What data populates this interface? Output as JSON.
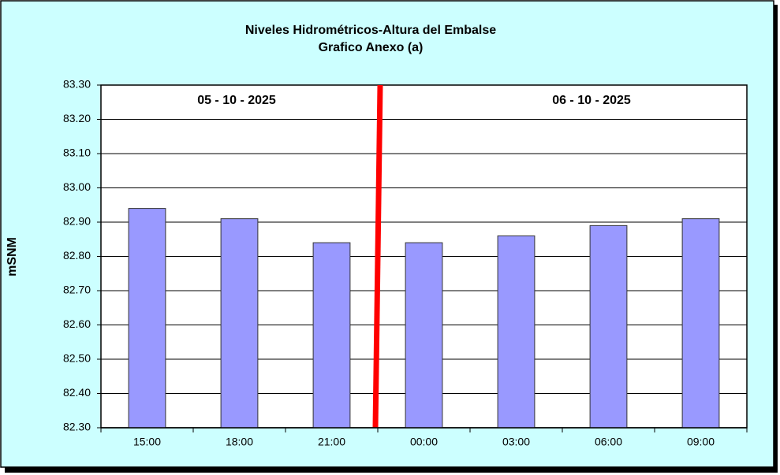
{
  "chart_data": {
    "type": "bar",
    "title": "Niveles Hidrométricos-Altura del Embalse",
    "subtitle": "Grafico Anexo (a)",
    "y_label": "mSNM",
    "annotations": [
      "05 - 10 - 2025",
      "06 - 10 - 2025"
    ],
    "categories": [
      "15:00",
      "18:00",
      "21:00",
      "00:00",
      "03:00",
      "06:00",
      "09:00"
    ],
    "values": [
      82.94,
      82.91,
      82.84,
      82.84,
      82.86,
      82.89,
      82.91
    ],
    "color": "#9999ff",
    "ylim": [
      82.3,
      83.3
    ],
    "yticks": [
      {
        "value": 82.3,
        "label": "82.30"
      },
      {
        "value": 82.4,
        "label": "82.40"
      },
      {
        "value": 82.5,
        "label": "82.50"
      },
      {
        "value": 82.6,
        "label": "82.60"
      },
      {
        "value": 82.7,
        "label": "82.70"
      },
      {
        "value": 82.8,
        "label": "82.80"
      },
      {
        "value": 82.9,
        "label": "82.90"
      },
      {
        "value": 83.0,
        "label": "83.00"
      },
      {
        "value": 83.1,
        "label": "83.10"
      },
      {
        "value": 83.2,
        "label": "83.20"
      },
      {
        "value": 83.3,
        "label": "83.30"
      }
    ],
    "grid": true
  }
}
